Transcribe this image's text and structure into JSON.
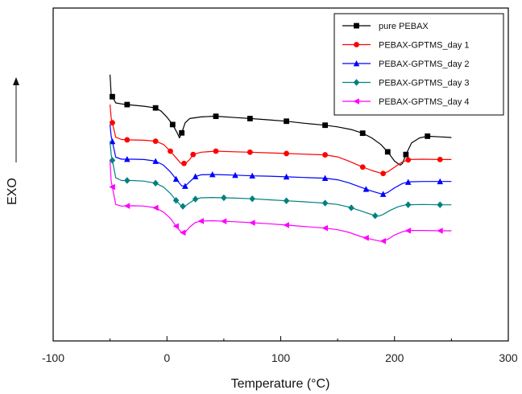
{
  "chart_data": {
    "type": "line",
    "title": "",
    "xlabel": "Temperature (°C)",
    "ylabel": "EXO",
    "xlim": [
      -100,
      300
    ],
    "x_ticks": [
      -100,
      0,
      100,
      200,
      300
    ],
    "ylim": [
      0,
      1
    ],
    "y_ticks_shown": false,
    "grid": false,
    "legend_position": "top-right",
    "y_units": "arbitrary (relative heat flow, exo up)",
    "series": [
      {
        "name": "pure PEBAX",
        "color": "#000000",
        "marker": "square",
        "points": [
          [
            -50,
            0.8
          ],
          [
            -49,
            0.74
          ],
          [
            -45,
            0.715
          ],
          [
            -40,
            0.712
          ],
          [
            -35,
            0.71
          ],
          [
            -20,
            0.705
          ],
          [
            -10,
            0.7
          ],
          [
            -5,
            0.69
          ],
          [
            0,
            0.672
          ],
          [
            5,
            0.65
          ],
          [
            9,
            0.625
          ],
          [
            11,
            0.61
          ],
          [
            13,
            0.625
          ],
          [
            16,
            0.655
          ],
          [
            20,
            0.668
          ],
          [
            30,
            0.673
          ],
          [
            42,
            0.675
          ],
          [
            60,
            0.671
          ],
          [
            73,
            0.668
          ],
          [
            90,
            0.664
          ],
          [
            105,
            0.66
          ],
          [
            120,
            0.654
          ],
          [
            139,
            0.648
          ],
          [
            150,
            0.643
          ],
          [
            162,
            0.635
          ],
          [
            172,
            0.624
          ],
          [
            180,
            0.61
          ],
          [
            188,
            0.59
          ],
          [
            194,
            0.568
          ],
          [
            200,
            0.54
          ],
          [
            205,
            0.528
          ],
          [
            207,
            0.533
          ],
          [
            210,
            0.56
          ],
          [
            215,
            0.595
          ],
          [
            222,
            0.61
          ],
          [
            229,
            0.615
          ],
          [
            240,
            0.613
          ],
          [
            250,
            0.611
          ]
        ]
      },
      {
        "name": "PEBAX-GPTMS_day 1",
        "color": "#ff0000",
        "marker": "circle",
        "points": [
          [
            -50,
            0.71
          ],
          [
            -49,
            0.67
          ],
          [
            -45,
            0.612
          ],
          [
            -40,
            0.605
          ],
          [
            -35,
            0.604
          ],
          [
            -20,
            0.603
          ],
          [
            -10,
            0.6
          ],
          [
            -3,
            0.59
          ],
          [
            3,
            0.57
          ],
          [
            8,
            0.55
          ],
          [
            12,
            0.534
          ],
          [
            16,
            0.533
          ],
          [
            20,
            0.545
          ],
          [
            23,
            0.56
          ],
          [
            30,
            0.567
          ],
          [
            43,
            0.57
          ],
          [
            60,
            0.568
          ],
          [
            73,
            0.567
          ],
          [
            90,
            0.565
          ],
          [
            105,
            0.563
          ],
          [
            120,
            0.561
          ],
          [
            139,
            0.559
          ],
          [
            150,
            0.553
          ],
          [
            160,
            0.54
          ],
          [
            170,
            0.525
          ],
          [
            180,
            0.512
          ],
          [
            187,
            0.505
          ],
          [
            190,
            0.503
          ],
          [
            194,
            0.508
          ],
          [
            200,
            0.522
          ],
          [
            207,
            0.538
          ],
          [
            213,
            0.545
          ],
          [
            225,
            0.546
          ],
          [
            240,
            0.545
          ],
          [
            250,
            0.545
          ]
        ]
      },
      {
        "name": "PEBAX-GPTMS_day 2",
        "color": "#0000ff",
        "marker": "triangle-up",
        "points": [
          [
            -50,
            0.65
          ],
          [
            -49,
            0.615
          ],
          [
            -45,
            0.552
          ],
          [
            -40,
            0.546
          ],
          [
            -30,
            0.546
          ],
          [
            -20,
            0.545
          ],
          [
            -10,
            0.54
          ],
          [
            -3,
            0.528
          ],
          [
            3,
            0.508
          ],
          [
            9,
            0.482
          ],
          [
            13,
            0.466
          ],
          [
            16,
            0.465
          ],
          [
            20,
            0.478
          ],
          [
            25,
            0.494
          ],
          [
            30,
            0.499
          ],
          [
            40,
            0.5
          ],
          [
            60,
            0.498
          ],
          [
            75,
            0.496
          ],
          [
            90,
            0.495
          ],
          [
            105,
            0.493
          ],
          [
            120,
            0.491
          ],
          [
            139,
            0.489
          ],
          [
            150,
            0.484
          ],
          [
            160,
            0.475
          ],
          [
            170,
            0.462
          ],
          [
            180,
            0.45
          ],
          [
            187,
            0.443
          ],
          [
            190,
            0.441
          ],
          [
            194,
            0.446
          ],
          [
            200,
            0.46
          ],
          [
            207,
            0.473
          ],
          [
            213,
            0.478
          ],
          [
            225,
            0.479
          ],
          [
            240,
            0.479
          ],
          [
            250,
            0.479
          ]
        ]
      },
      {
        "name": "PEBAX-GPTMS_day 3",
        "color": "#008080",
        "marker": "diamond",
        "points": [
          [
            -50,
            0.6
          ],
          [
            -49,
            0.56
          ],
          [
            -45,
            0.49
          ],
          [
            -40,
            0.482
          ],
          [
            -30,
            0.482
          ],
          [
            -20,
            0.48
          ],
          [
            -10,
            0.474
          ],
          [
            -3,
            0.462
          ],
          [
            3,
            0.443
          ],
          [
            9,
            0.418
          ],
          [
            13,
            0.404
          ],
          [
            16,
            0.405
          ],
          [
            20,
            0.415
          ],
          [
            25,
            0.426
          ],
          [
            30,
            0.43
          ],
          [
            40,
            0.431
          ],
          [
            60,
            0.429
          ],
          [
            75,
            0.427
          ],
          [
            90,
            0.424
          ],
          [
            105,
            0.421
          ],
          [
            120,
            0.418
          ],
          [
            139,
            0.414
          ],
          [
            150,
            0.41
          ],
          [
            160,
            0.402
          ],
          [
            170,
            0.391
          ],
          [
            178,
            0.382
          ],
          [
            183,
            0.376
          ],
          [
            186,
            0.375
          ],
          [
            190,
            0.38
          ],
          [
            196,
            0.392
          ],
          [
            203,
            0.403
          ],
          [
            210,
            0.409
          ],
          [
            225,
            0.41
          ],
          [
            240,
            0.409
          ],
          [
            250,
            0.409
          ]
        ]
      },
      {
        "name": "PEBAX-GPTMS_day 4",
        "color": "#ff00ff",
        "marker": "triangle-left",
        "points": [
          [
            -50,
            0.54
          ],
          [
            -49,
            0.48
          ],
          [
            -45,
            0.41
          ],
          [
            -40,
            0.405
          ],
          [
            -30,
            0.406
          ],
          [
            -20,
            0.405
          ],
          [
            -10,
            0.4
          ],
          [
            -3,
            0.387
          ],
          [
            3,
            0.368
          ],
          [
            9,
            0.34
          ],
          [
            13,
            0.325
          ],
          [
            16,
            0.326
          ],
          [
            20,
            0.342
          ],
          [
            25,
            0.356
          ],
          [
            30,
            0.36
          ],
          [
            40,
            0.361
          ],
          [
            60,
            0.358
          ],
          [
            75,
            0.355
          ],
          [
            90,
            0.352
          ],
          [
            105,
            0.348
          ],
          [
            120,
            0.344
          ],
          [
            139,
            0.339
          ],
          [
            150,
            0.334
          ],
          [
            160,
            0.326
          ],
          [
            170,
            0.314
          ],
          [
            180,
            0.305
          ],
          [
            187,
            0.3
          ],
          [
            190,
            0.3
          ],
          [
            194,
            0.305
          ],
          [
            200,
            0.318
          ],
          [
            207,
            0.328
          ],
          [
            213,
            0.332
          ],
          [
            225,
            0.332
          ],
          [
            240,
            0.331
          ],
          [
            250,
            0.331
          ]
        ]
      }
    ],
    "marker_x": {
      "pure PEBAX": [
        -48,
        -35,
        -10,
        5,
        13,
        43,
        73,
        105,
        139,
        172,
        194,
        210,
        229
      ],
      "PEBAX-GPTMS_day 1": [
        -48,
        -35,
        -10,
        3,
        15,
        23,
        43,
        73,
        105,
        139,
        172,
        190,
        212,
        240
      ],
      "PEBAX-GPTMS_day 2": [
        -48,
        -35,
        -10,
        8,
        16,
        25,
        40,
        60,
        75,
        105,
        139,
        175,
        190,
        212,
        240
      ],
      "PEBAX-GPTMS_day 3": [
        -48,
        -35,
        -10,
        8,
        14,
        25,
        50,
        75,
        105,
        139,
        162,
        183,
        212,
        240
      ],
      "PEBAX-GPTMS_day 4": [
        -48,
        -35,
        -10,
        8,
        14,
        30,
        50,
        75,
        105,
        139,
        175,
        190,
        212,
        240
      ]
    }
  }
}
